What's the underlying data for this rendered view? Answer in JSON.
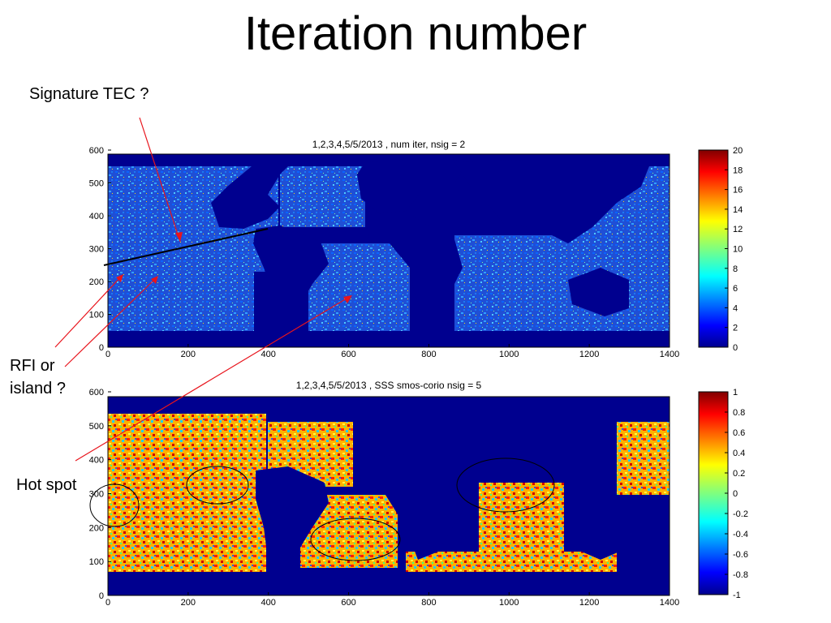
{
  "slide": {
    "title": "Iteration number",
    "annotations": {
      "signature_tec": "Signature TEC ?",
      "rfi_line1": "RFI or",
      "rfi_line2": "island ?",
      "hot_spot": "Hot spot"
    }
  },
  "colors": {
    "ocean_background": "#00008f",
    "annotation_arrow": "#e8141c",
    "annotation_line": "#000000"
  },
  "chart_data": [
    {
      "type": "heatmap",
      "title": "1,2,3,4,5/5/2013 , num iter, nsig = 2",
      "x_ticks": [
        0,
        200,
        400,
        600,
        800,
        1000,
        1200,
        1400
      ],
      "y_ticks": [
        0,
        100,
        200,
        300,
        400,
        500,
        600
      ],
      "xlim": [
        0,
        1400
      ],
      "ylim": [
        0,
        600
      ],
      "colorbar": {
        "ticks": [
          0,
          2,
          4,
          6,
          8,
          10,
          12,
          14,
          16,
          18,
          20
        ],
        "range": [
          0,
          20
        ],
        "colormap": "jet"
      }
    },
    {
      "type": "heatmap",
      "title": "1,2,3,4,5/5/2013 , SSS smos-corio nsig = 5",
      "x_ticks": [
        0,
        200,
        400,
        600,
        800,
        1000,
        1200,
        1400
      ],
      "y_ticks": [
        0,
        100,
        200,
        300,
        400,
        500,
        600
      ],
      "xlim": [
        0,
        1400
      ],
      "ylim": [
        0,
        600
      ],
      "colorbar": {
        "ticks": [
          "1",
          "0.8",
          "0.6",
          "0.4",
          "0.2",
          "0",
          "-0.2",
          "-0.4",
          "-0.6",
          "-0.8",
          "-1"
        ],
        "range": [
          -1,
          1
        ],
        "colormap": "jet"
      }
    }
  ]
}
